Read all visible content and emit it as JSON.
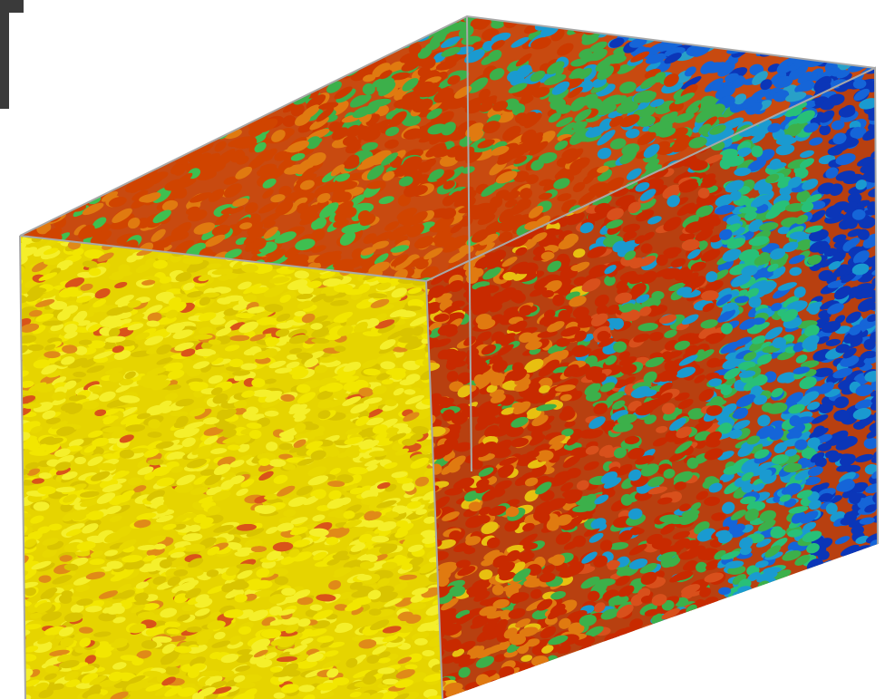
{
  "figure": {
    "description_type": "3d-particle-simulation-render",
    "has_text": false,
    "bounding_box_visible": true
  },
  "colors": {
    "background": "#ffffff",
    "front_face": [
      "#f2e600",
      "#e8d800",
      "#d9c400",
      "#f5ef2a",
      "#e0a018"
    ],
    "top_face": [
      "#cc3a00",
      "#d9531a",
      "#b82e00",
      "#e07a10",
      "#2ea040",
      "#3fbf50",
      "#1aa0c8"
    ],
    "side_face": [
      "#c82a00",
      "#d8501c",
      "#3cb04a",
      "#28c078",
      "#1a9ad0",
      "#1565d8",
      "#0b36b8"
    ],
    "outline": "#a8a8a8",
    "corner_mark": "#3a3a3a"
  },
  "gradient": {
    "direction": "depth-left-to-right",
    "stops": [
      "yellow",
      "orange",
      "red",
      "green",
      "cyan",
      "blue"
    ]
  }
}
